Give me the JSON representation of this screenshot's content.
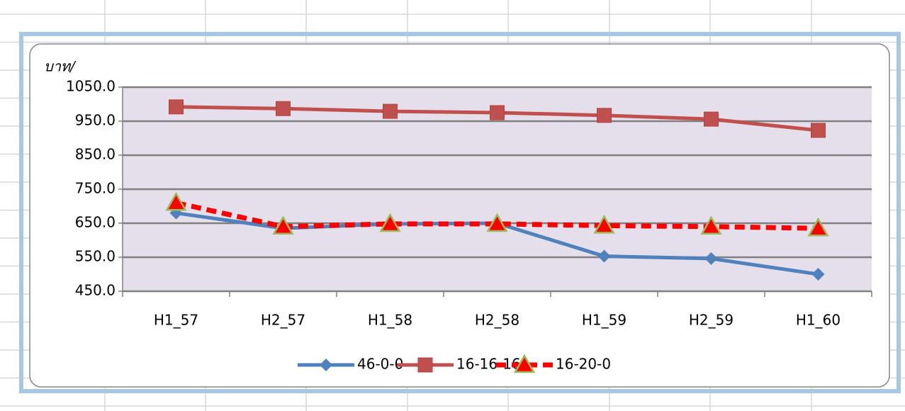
{
  "chart_data": {
    "type": "line",
    "y_label": "บาท/",
    "categories": [
      "H1_57",
      "H2_57",
      "H1_58",
      "H2_58",
      "H1_59",
      "H2_59",
      "H1_60"
    ],
    "series": [
      {
        "name": "46-0-0",
        "color": "#4f81bd",
        "marker": "diamond",
        "dashed": false,
        "values": [
          680,
          635,
          648,
          650,
          553,
          546,
          500
        ]
      },
      {
        "name": "16-16-16",
        "color": "#c0504d",
        "marker": "square",
        "dashed": false,
        "values": [
          992,
          987,
          979,
          975,
          967,
          956,
          923
        ]
      },
      {
        "name": "16-20-0",
        "color": "#ff0000",
        "marker": "triangle",
        "marker_edge": "#9bbb59",
        "dashed": true,
        "values": [
          710,
          640,
          648,
          648,
          643,
          640,
          635
        ]
      }
    ],
    "ylim": [
      450,
      1050
    ],
    "yticks": [
      {
        "value": 450,
        "label": "450.0"
      },
      {
        "value": 550,
        "label": "550.0"
      },
      {
        "value": 650,
        "label": "650.0"
      },
      {
        "value": 750,
        "label": "750.0"
      },
      {
        "value": 850,
        "label": "850.0"
      },
      {
        "value": 950,
        "label": "950.0"
      },
      {
        "value": 1050,
        "label": "1050.0"
      }
    ],
    "grid": true,
    "legend": "bottom"
  }
}
